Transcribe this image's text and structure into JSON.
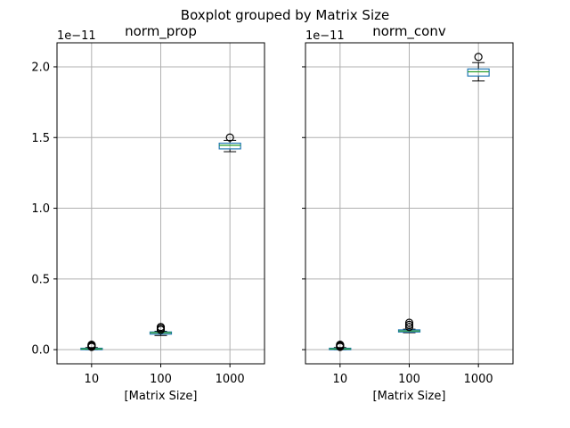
{
  "chart_data": {
    "type": "boxplot",
    "suptitle": "Boxplot grouped by Matrix Size",
    "categories": [
      "10",
      "100",
      "1000"
    ],
    "yticks": [
      0.0,
      0.5,
      1.0,
      1.5,
      2.0
    ],
    "ytick_labels": [
      "0.0",
      "0.5",
      "1.0",
      "1.5",
      "2.0"
    ],
    "ylim": [
      -0.1,
      2.17
    ],
    "y_offset_label": "1e−11",
    "grid": true,
    "box_color": "#1f77b4",
    "median_color": "#2ca02c",
    "panels": [
      {
        "title": "norm_prop",
        "xlabel": "[Matrix Size]",
        "show_ytick_labels": true,
        "boxes": [
          {
            "category": "10",
            "whisker_low": 0.0,
            "q1": 0.0,
            "median": 0.005,
            "q3": 0.01,
            "whisker_high": 0.015,
            "fliers": [
              0.02,
              0.025,
              0.03,
              0.035
            ]
          },
          {
            "category": "100",
            "whisker_low": 0.1,
            "q1": 0.11,
            "median": 0.12,
            "q3": 0.125,
            "whisker_high": 0.13,
            "fliers": [
              0.14,
              0.15,
              0.16
            ]
          },
          {
            "category": "1000",
            "whisker_low": 1.4,
            "q1": 1.42,
            "median": 1.445,
            "q3": 1.46,
            "whisker_high": 1.48,
            "fliers": [
              1.5
            ]
          }
        ]
      },
      {
        "title": "norm_conv",
        "xlabel": "[Matrix Size]",
        "show_ytick_labels": false,
        "boxes": [
          {
            "category": "10",
            "whisker_low": 0.0,
            "q1": 0.0,
            "median": 0.005,
            "q3": 0.01,
            "whisker_high": 0.015,
            "fliers": [
              0.02,
              0.025,
              0.03,
              0.035
            ]
          },
          {
            "category": "100",
            "whisker_low": 0.12,
            "q1": 0.125,
            "median": 0.132,
            "q3": 0.14,
            "whisker_high": 0.145,
            "fliers": [
              0.16,
              0.175,
              0.19
            ]
          },
          {
            "category": "1000",
            "whisker_low": 1.9,
            "q1": 1.935,
            "median": 1.965,
            "q3": 1.985,
            "whisker_high": 2.03,
            "fliers": [
              2.07
            ]
          }
        ]
      }
    ]
  }
}
